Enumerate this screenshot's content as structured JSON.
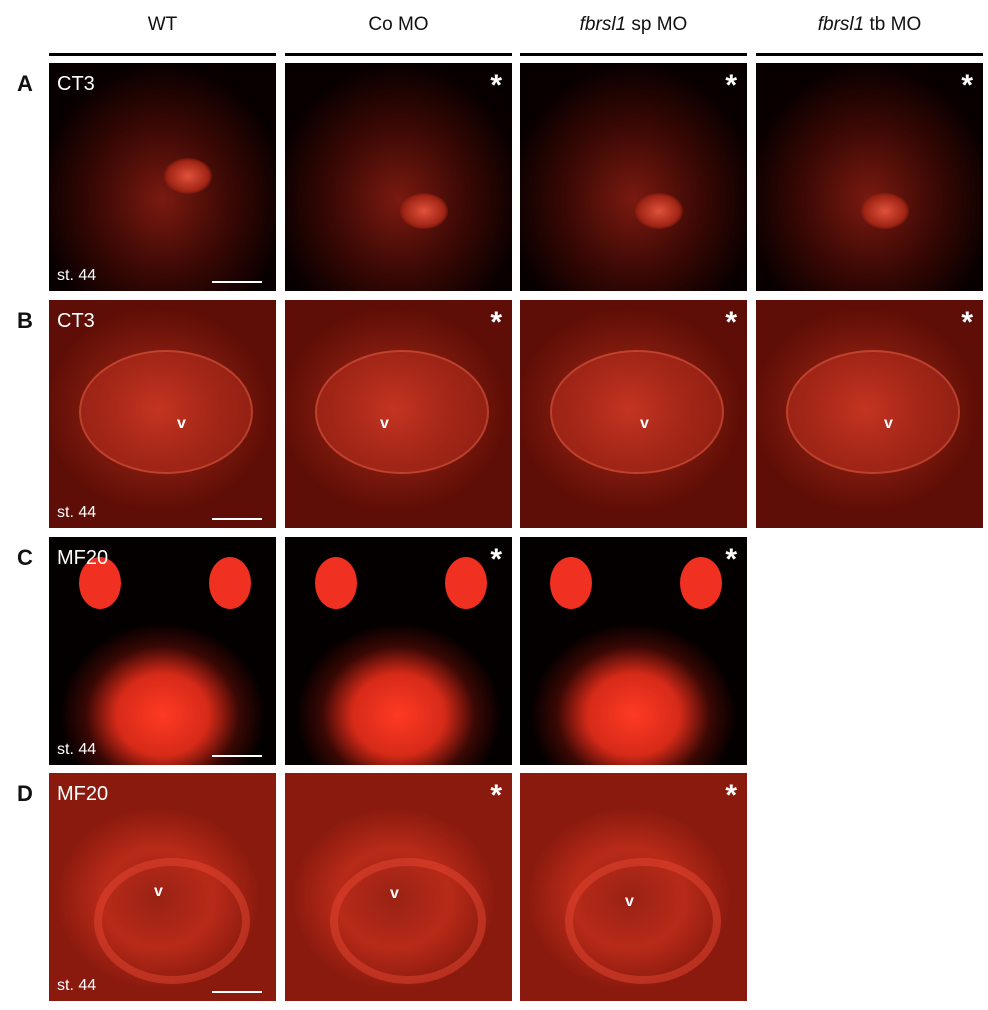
{
  "columns": [
    {
      "label": "WT",
      "italic": ""
    },
    {
      "label": " sp MO",
      "italic": "fbrsl1",
      "text": "Co MO"
    },
    {
      "label": " sp MO",
      "italic": "fbrsl1"
    },
    {
      "label": " tb MO",
      "italic": "fbrsl1"
    }
  ],
  "column_headers": {
    "wt": "WT",
    "co": "Co MO",
    "sp_italic": "fbrsl1",
    "sp_rest": " sp MO",
    "tb_italic": "fbrsl1",
    "tb_rest": " tb MO"
  },
  "rows": [
    {
      "letter": "A",
      "stain": "CT3",
      "stage": "st. 44",
      "panels": 4
    },
    {
      "letter": "B",
      "stain": "CT3",
      "stage": "st. 44",
      "panels": 4
    },
    {
      "letter": "C",
      "stain": "MF20",
      "stage": "st. 44",
      "panels": 3
    },
    {
      "letter": "D",
      "stain": "MF20",
      "stage": "st. 44",
      "panels": 3
    }
  ],
  "marks": {
    "asterisk": "*",
    "ventricle": "v"
  },
  "colors": {
    "fluorescence": "#e8291a",
    "background_dark": "#0a0000"
  }
}
